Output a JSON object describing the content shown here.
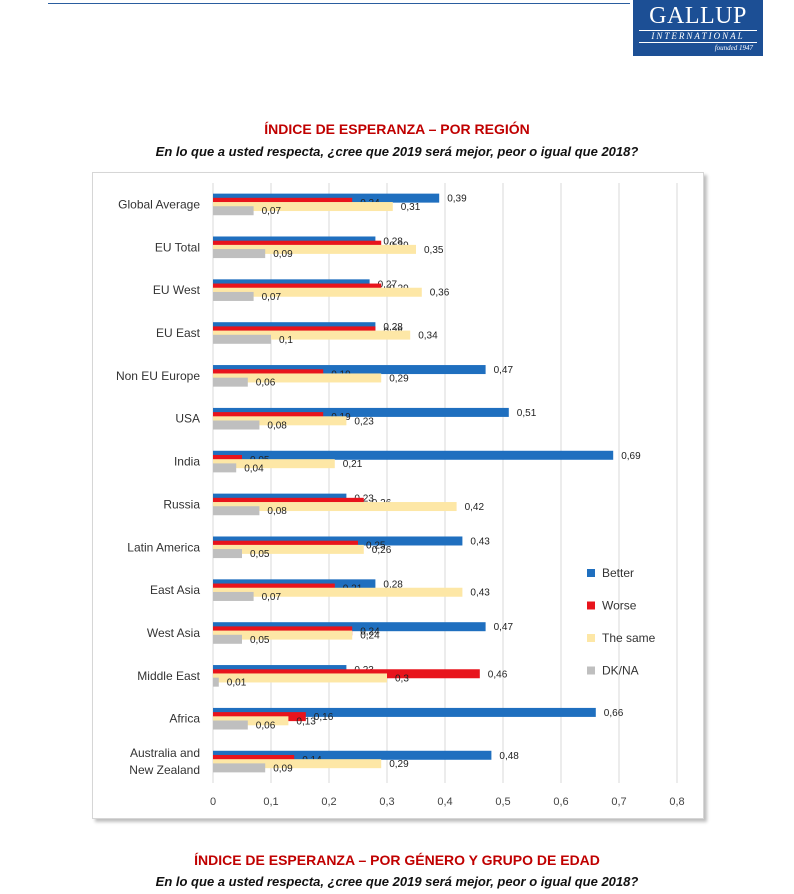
{
  "logo": {
    "name": "GALLUP",
    "subname": "INTERNATIONAL",
    "founded": "founded 1947"
  },
  "section1": {
    "title": "ÍNDICE DE ESPERANZA – POR REGIÓN",
    "subtitle": "En lo que a usted respecta, ¿cree que 2019 será mejor, peor o igual que 2018?"
  },
  "section2": {
    "title": "ÍNDICE DE ESPERANZA – POR GÉNERO Y GRUPO DE EDAD",
    "subtitle": "En lo que a usted respecta, ¿cree que 2019 será mejor, peor o igual que 2018?"
  },
  "chart_data": {
    "type": "bar",
    "orientation": "horizontal",
    "categories": [
      "Global Average",
      "EU Total",
      "EU West",
      "EU East",
      "Non EU Europe",
      "USA",
      "India",
      "Russia",
      "Latin America",
      "East Asia",
      "West Asia",
      "Middle East",
      "Africa",
      "Australia and New Zealand"
    ],
    "category_lines": [
      [
        "Global Average"
      ],
      [
        "EU Total"
      ],
      [
        "EU West"
      ],
      [
        "EU East"
      ],
      [
        "Non EU Europe"
      ],
      [
        "USA"
      ],
      [
        "India"
      ],
      [
        "Russia"
      ],
      [
        "Latin America"
      ],
      [
        "East Asia"
      ],
      [
        "West Asia"
      ],
      [
        "Middle East"
      ],
      [
        "Africa"
      ],
      [
        "Australia and",
        "New Zealand"
      ]
    ],
    "series": [
      {
        "name": "Better",
        "color": "#1f6fbf",
        "values": [
          0.39,
          0.28,
          0.27,
          0.28,
          0.47,
          0.51,
          0.69,
          0.23,
          0.43,
          0.28,
          0.47,
          0.23,
          0.66,
          0.48
        ]
      },
      {
        "name": "Worse",
        "color": "#e8141c",
        "values": [
          0.24,
          0.29,
          0.29,
          0.28,
          0.19,
          0.19,
          0.05,
          0.26,
          0.25,
          0.21,
          0.24,
          0.46,
          0.16,
          0.14
        ]
      },
      {
        "name": "The same",
        "color": "#fde7a6",
        "values": [
          0.31,
          0.35,
          0.36,
          0.34,
          0.29,
          0.23,
          0.21,
          0.42,
          0.26,
          0.43,
          0.24,
          0.3,
          0.13,
          0.29
        ]
      },
      {
        "name": "DK/NA",
        "color": "#bfbfbf",
        "values": [
          0.07,
          0.09,
          0.07,
          0.1,
          0.06,
          0.08,
          0.04,
          0.08,
          0.05,
          0.07,
          0.05,
          0.01,
          0.06,
          0.09
        ]
      }
    ],
    "xlim": [
      0,
      0.8
    ],
    "xticks": [
      "0",
      "0,1",
      "0,2",
      "0,3",
      "0,4",
      "0,5",
      "0,6",
      "0,7",
      "0,8"
    ],
    "decimal_separator": ",",
    "grid": true,
    "legend_position": "right"
  }
}
